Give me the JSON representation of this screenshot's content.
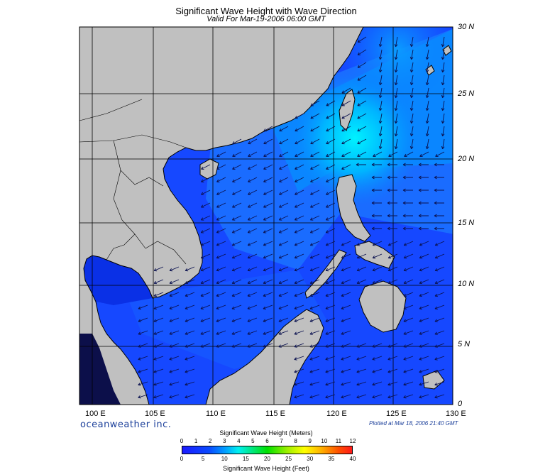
{
  "title": "Significant Wave Height with Wave Direction",
  "subtitle": "Valid For Mar-19-2006 06:00 GMT",
  "longitude_labels": [
    "100 E",
    "105 E",
    "110 E",
    "115 E",
    "120 E",
    "125 E",
    "130 E"
  ],
  "latitude_labels": [
    "30 N",
    "25 N",
    "20 N",
    "15 N",
    "10 N",
    "5 N",
    "0"
  ],
  "brand": "oceanweather inc.",
  "plotted": "Plotted at Mar 18, 2006 21:40 GMT",
  "colorbar": {
    "meters_title": "Significant Wave Height (Meters)",
    "meters_ticks": [
      "0",
      "1",
      "2",
      "3",
      "4",
      "5",
      "6",
      "7",
      "8",
      "9",
      "10",
      "11",
      "12"
    ],
    "feet_title": "Significant Wave Height (Feet)",
    "feet_ticks": [
      "0",
      "5",
      "10",
      "15",
      "20",
      "25",
      "30",
      "35",
      "40"
    ]
  },
  "colors": {
    "land": "#c0c0c0",
    "sea_base": "#1550ff",
    "sea_high": "#00e8ff",
    "arrow": "#0b1250",
    "grid": "#000000"
  }
}
